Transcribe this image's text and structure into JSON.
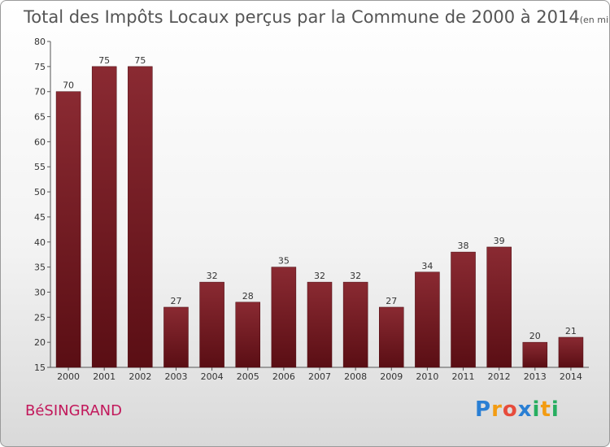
{
  "chart_data": {
    "type": "bar",
    "title": "Total des Impôts Locaux perçus par la Commune de 2000 à 2014",
    "unit": "(en milliers d'€)",
    "categories": [
      "2000",
      "2001",
      "2002",
      "2003",
      "2004",
      "2005",
      "2006",
      "2007",
      "2008",
      "2009",
      "2010",
      "2011",
      "2012",
      "2013",
      "2014"
    ],
    "values": [
      70,
      75,
      75,
      27,
      32,
      28,
      35,
      32,
      32,
      27,
      34,
      38,
      39,
      20,
      21
    ],
    "ylim": [
      15,
      80
    ],
    "yticks": [
      15,
      20,
      25,
      30,
      35,
      40,
      45,
      50,
      55,
      60,
      65,
      70,
      75,
      80
    ],
    "xlabel": "",
    "ylabel": "",
    "grid": false,
    "bar_color": "#7a1a22"
  },
  "commune": "BéSINGRAND",
  "logo": {
    "letters": [
      "P",
      "r",
      "o",
      "x",
      "i",
      "t",
      "i"
    ],
    "colors": [
      "#2a7fd4",
      "#f39c12",
      "#e74c3c",
      "#2a7fd4",
      "#27ae60",
      "#f39c12",
      "#27ae60"
    ]
  }
}
